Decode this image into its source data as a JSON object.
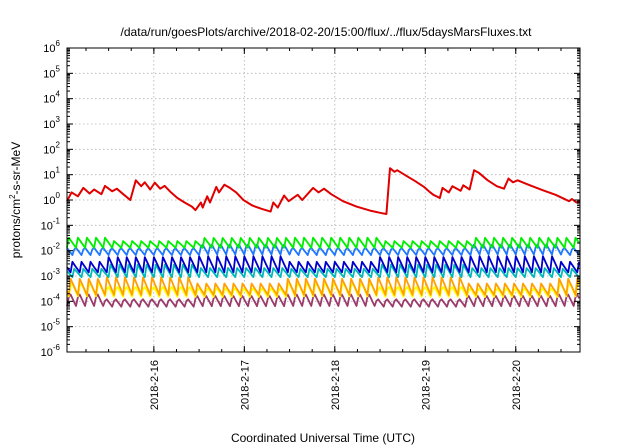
{
  "chart_data": {
    "type": "line",
    "title": "/data/run/goesPlots/archive/2018-02-20/15:00/flux/../flux/5daysMarsFluxes.txt",
    "xlabel": "Coordinated Universal Time (UTC)",
    "ylabel_base": "protons/cm",
    "ylabel_sup": "2",
    "ylabel_tail": "-s-sr-MeV",
    "x_range_days": [
      0,
      5.67
    ],
    "x_ticks": [
      {
        "label": "2018-2-16",
        "day": 0.96
      },
      {
        "label": "2018-2-17",
        "day": 1.96
      },
      {
        "label": "2018-2-18",
        "day": 2.96
      },
      {
        "label": "2018-2-19",
        "day": 3.96
      },
      {
        "label": "2018-2-20",
        "day": 4.96
      }
    ],
    "y_scale": "log",
    "y_range_exp": [
      -6,
      6
    ],
    "y_ticks": [
      {
        "base": "10",
        "exp": "6"
      },
      {
        "base": "10",
        "exp": "5"
      },
      {
        "base": "10",
        "exp": "4"
      },
      {
        "base": "10",
        "exp": "3"
      },
      {
        "base": "10",
        "exp": "2"
      },
      {
        "base": "10",
        "exp": "1"
      },
      {
        "base": "10",
        "exp": "0"
      },
      {
        "base": "10",
        "exp": "-1"
      },
      {
        "base": "10",
        "exp": "-2"
      },
      {
        "base": "10",
        "exp": "-3"
      },
      {
        "base": "10",
        "exp": "-4"
      },
      {
        "base": "10",
        "exp": "-5"
      },
      {
        "base": "10",
        "exp": "-6"
      }
    ],
    "grid": true,
    "series": [
      {
        "color": "#e00000",
        "points": [
          [
            0.0,
            0.9
          ],
          [
            0.05,
            2.0
          ],
          [
            0.12,
            1.4
          ],
          [
            0.18,
            3.0
          ],
          [
            0.25,
            1.8
          ],
          [
            0.3,
            2.6
          ],
          [
            0.38,
            1.7
          ],
          [
            0.42,
            3.6
          ],
          [
            0.5,
            2.2
          ],
          [
            0.55,
            2.8
          ],
          [
            0.63,
            1.6
          ],
          [
            0.7,
            1.0
          ],
          [
            0.76,
            6.0
          ],
          [
            0.82,
            3.5
          ],
          [
            0.86,
            5.0
          ],
          [
            0.92,
            2.6
          ],
          [
            0.97,
            4.8
          ],
          [
            1.03,
            2.8
          ],
          [
            1.08,
            3.6
          ],
          [
            1.15,
            2.0
          ],
          [
            1.22,
            1.2
          ],
          [
            1.3,
            0.8
          ],
          [
            1.38,
            0.55
          ],
          [
            1.42,
            0.4
          ],
          [
            1.48,
            0.8
          ],
          [
            1.5,
            0.5
          ],
          [
            1.55,
            1.4
          ],
          [
            1.58,
            0.8
          ],
          [
            1.65,
            3.3
          ],
          [
            1.68,
            2.0
          ],
          [
            1.74,
            4.0
          ],
          [
            1.8,
            3.0
          ],
          [
            1.87,
            2.0
          ],
          [
            1.95,
            1.0
          ],
          [
            2.05,
            0.6
          ],
          [
            2.15,
            0.45
          ],
          [
            2.25,
            0.35
          ],
          [
            2.28,
            0.8
          ],
          [
            2.33,
            0.5
          ],
          [
            2.4,
            1.5
          ],
          [
            2.45,
            0.9
          ],
          [
            2.55,
            1.6
          ],
          [
            2.6,
            1.0
          ],
          [
            2.72,
            3.0
          ],
          [
            2.78,
            2.0
          ],
          [
            2.84,
            2.8
          ],
          [
            2.92,
            1.7
          ],
          [
            3.05,
            0.9
          ],
          [
            3.2,
            0.55
          ],
          [
            3.35,
            0.38
          ],
          [
            3.48,
            0.3
          ],
          [
            3.53,
            0.28
          ],
          [
            3.57,
            18
          ],
          [
            3.62,
            13
          ],
          [
            3.65,
            15
          ],
          [
            3.75,
            9
          ],
          [
            3.85,
            5.5
          ],
          [
            3.95,
            3.2
          ],
          [
            4.0,
            2.2
          ],
          [
            4.05,
            1.6
          ],
          [
            4.12,
            1.2
          ],
          [
            4.15,
            3.0
          ],
          [
            4.22,
            2.0
          ],
          [
            4.26,
            3.5
          ],
          [
            4.35,
            2.3
          ],
          [
            4.38,
            3.8
          ],
          [
            4.45,
            2.6
          ],
          [
            4.5,
            15
          ],
          [
            4.55,
            12
          ],
          [
            4.65,
            6.0
          ],
          [
            4.75,
            3.5
          ],
          [
            4.83,
            2.8
          ],
          [
            4.88,
            7.0
          ],
          [
            4.93,
            5.0
          ],
          [
            4.98,
            6.0
          ],
          [
            5.1,
            4.0
          ],
          [
            5.25,
            2.5
          ],
          [
            5.4,
            1.6
          ],
          [
            5.55,
            0.9
          ],
          [
            5.58,
            1.1
          ],
          [
            5.63,
            0.8
          ],
          [
            5.67,
            0.9
          ]
        ]
      },
      {
        "color": "#00ee00",
        "low": 0.013,
        "high": 0.038,
        "shift": 0.0
      },
      {
        "color": "#1e78ff",
        "low": 0.006,
        "high": 0.022,
        "shift": 0.03
      },
      {
        "color": "#0000cc",
        "low": 0.0014,
        "high": 0.0075,
        "shift": 0.06
      },
      {
        "color": "#00b8b8",
        "low": 0.0009,
        "high": 0.003,
        "shift": 0.04
      },
      {
        "color": "#ffa000",
        "low": 0.00018,
        "high": 0.0011,
        "shift": 0.08
      },
      {
        "color": "#ffff00",
        "low": 0.00013,
        "high": 0.0007,
        "shift": 0.07
      },
      {
        "color": "#9b3b6b",
        "low": 5.5e-05,
        "high": 0.00026,
        "shift": 0.09
      }
    ],
    "sawtooth_period_days": 0.1
  }
}
